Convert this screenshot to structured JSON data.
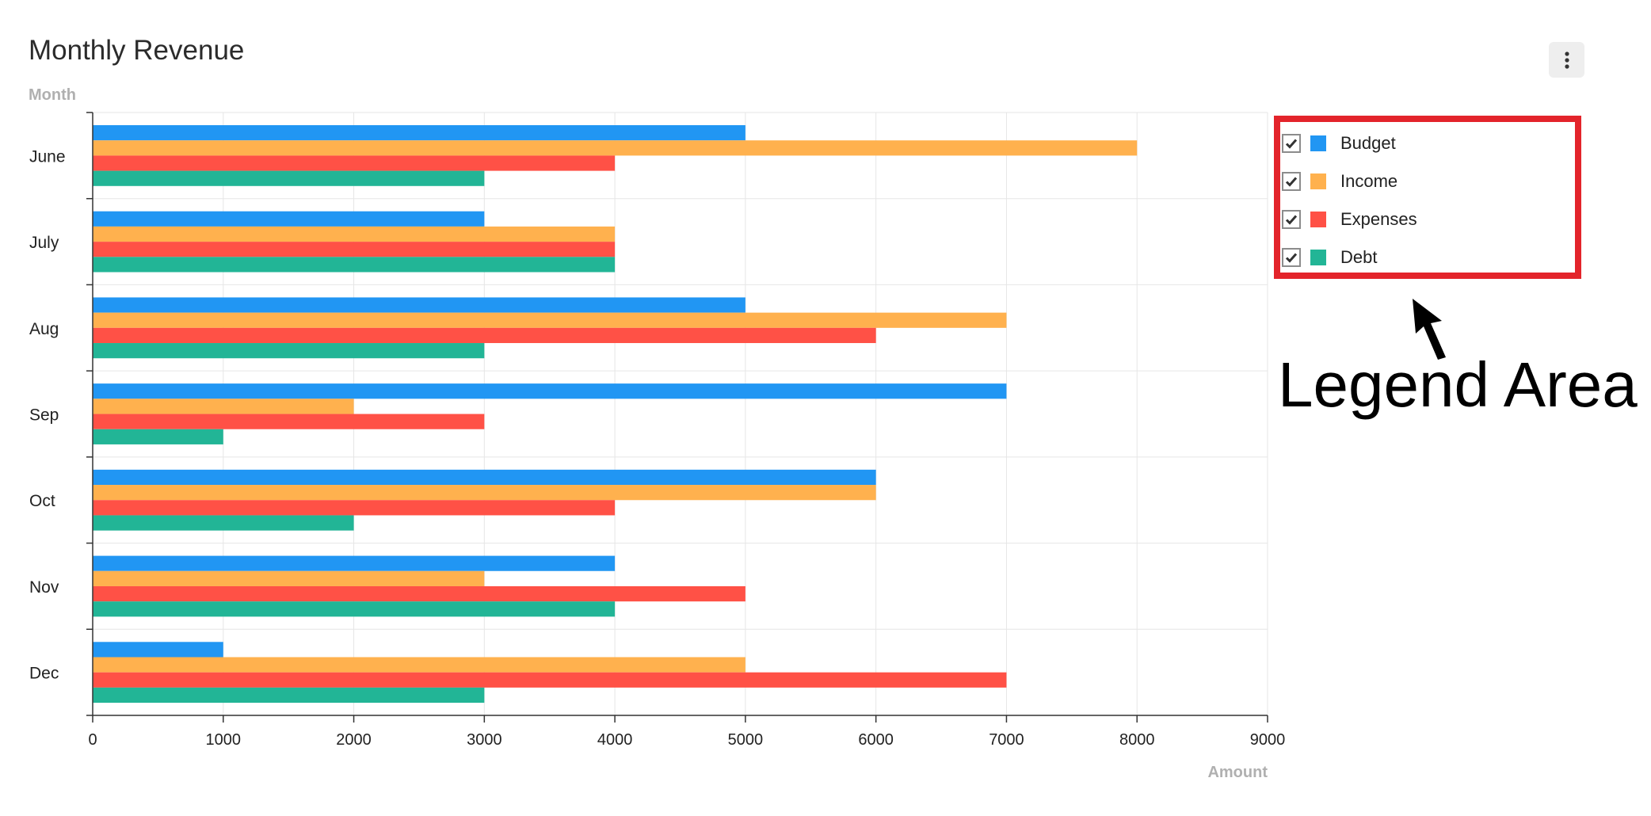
{
  "header": {
    "title": "Monthly Revenue",
    "menu_icon": "vertical-dots-icon"
  },
  "chart_data": {
    "type": "bar",
    "orientation": "horizontal",
    "title": "Monthly Revenue",
    "xlabel": "Amount",
    "ylabel": "Month",
    "categories": [
      "June",
      "July",
      "Aug",
      "Sep",
      "Oct",
      "Nov",
      "Dec"
    ],
    "xlim": [
      0,
      9000
    ],
    "xticks": [
      "0",
      "1000",
      "2000",
      "3000",
      "4000",
      "5000",
      "6000",
      "7000",
      "8000",
      "9000"
    ],
    "grid": true,
    "legend_position": "right",
    "series": [
      {
        "name": "Budget",
        "color": "#2196f3",
        "values": [
          5000,
          3000,
          5000,
          7000,
          6000,
          4000,
          1000
        ]
      },
      {
        "name": "Income",
        "color": "#ffb14e",
        "values": [
          8000,
          4000,
          7000,
          2000,
          6000,
          3000,
          5000
        ]
      },
      {
        "name": "Expenses",
        "color": "#ff5146",
        "values": [
          4000,
          4000,
          6000,
          3000,
          4000,
          5000,
          7000
        ]
      },
      {
        "name": "Debt",
        "color": "#22b596",
        "values": [
          3000,
          4000,
          3000,
          1000,
          2000,
          4000,
          3000
        ]
      }
    ]
  },
  "legend": {
    "items": [
      {
        "label": "Budget",
        "checked": true,
        "color": "#2196f3"
      },
      {
        "label": "Income",
        "checked": true,
        "color": "#ffb14e"
      },
      {
        "label": "Expenses",
        "checked": true,
        "color": "#ff5146"
      },
      {
        "label": "Debt",
        "checked": true,
        "color": "#22b596"
      }
    ],
    "highlight_color": "#e3242b"
  },
  "annotation": {
    "text": "Legend Area",
    "arrow_icon": "arrow-up-left-icon"
  }
}
